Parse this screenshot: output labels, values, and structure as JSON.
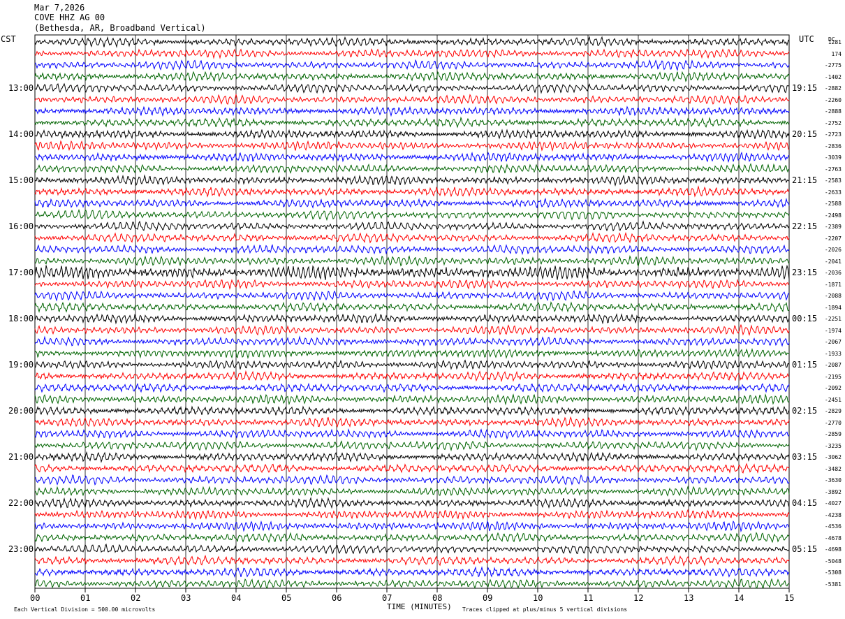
{
  "header": {
    "date": "Mar 7,2026",
    "station": "COVE HHZ AG 00",
    "location": "(Bethesda, AR, Broadband Vertical)"
  },
  "left_tz": "CST",
  "right_tz": "UTC",
  "dc_label": "DC",
  "chart_data": {
    "type": "line",
    "subtype": "helicorder",
    "xlabel": "TIME (MINUTES)",
    "x_ticks": [
      "00",
      "01",
      "02",
      "03",
      "04",
      "05",
      "06",
      "07",
      "08",
      "09",
      "10",
      "11",
      "12",
      "13",
      "14",
      "15"
    ],
    "xlim": [
      0,
      15
    ],
    "trace_count": 48,
    "trace_minutes": 15,
    "colors_cycle": [
      "#000000",
      "#ff0000",
      "#0000ff",
      "#006400"
    ],
    "left_hour_labels": [
      "13:00",
      "14:00",
      "15:00",
      "16:00",
      "17:00",
      "18:00",
      "19:00",
      "20:00",
      "21:00",
      "22:00",
      "23:00"
    ],
    "right_hour_labels": [
      "19:15",
      "20:15",
      "21:15",
      "22:15",
      "23:15",
      "00:15",
      "01:15",
      "02:15",
      "03:15",
      "04:15",
      "05:15"
    ],
    "dc_offsets": [
      "1281",
      "174",
      "-2775",
      "-1402",
      "-2882",
      "-2260",
      "-2888",
      "-2752",
      "-2723",
      "-2836",
      "-3039",
      "-2763",
      "-2583",
      "-2633",
      "-2588",
      "-2498",
      "-2389",
      "-2207",
      "-2026",
      "-2041",
      "-2036",
      "-1871",
      "-2088",
      "-1894",
      "-2251",
      "-1974",
      "-2067",
      "-1933",
      "-2087",
      "-2195",
      "-2092",
      "-2451",
      "-2829",
      "-2770",
      "-2859",
      "-3235",
      "-3062",
      "-3482",
      "-3630",
      "-3892",
      "-4027",
      "-4238",
      "-4536",
      "-4678",
      "-4698",
      "-5048",
      "-5308",
      "-5381"
    ],
    "scale_note": "Each Vertical Division =  500.00 microvolts",
    "clip_note": "Traces clipped at plus/minus 5 vertical divisions"
  }
}
